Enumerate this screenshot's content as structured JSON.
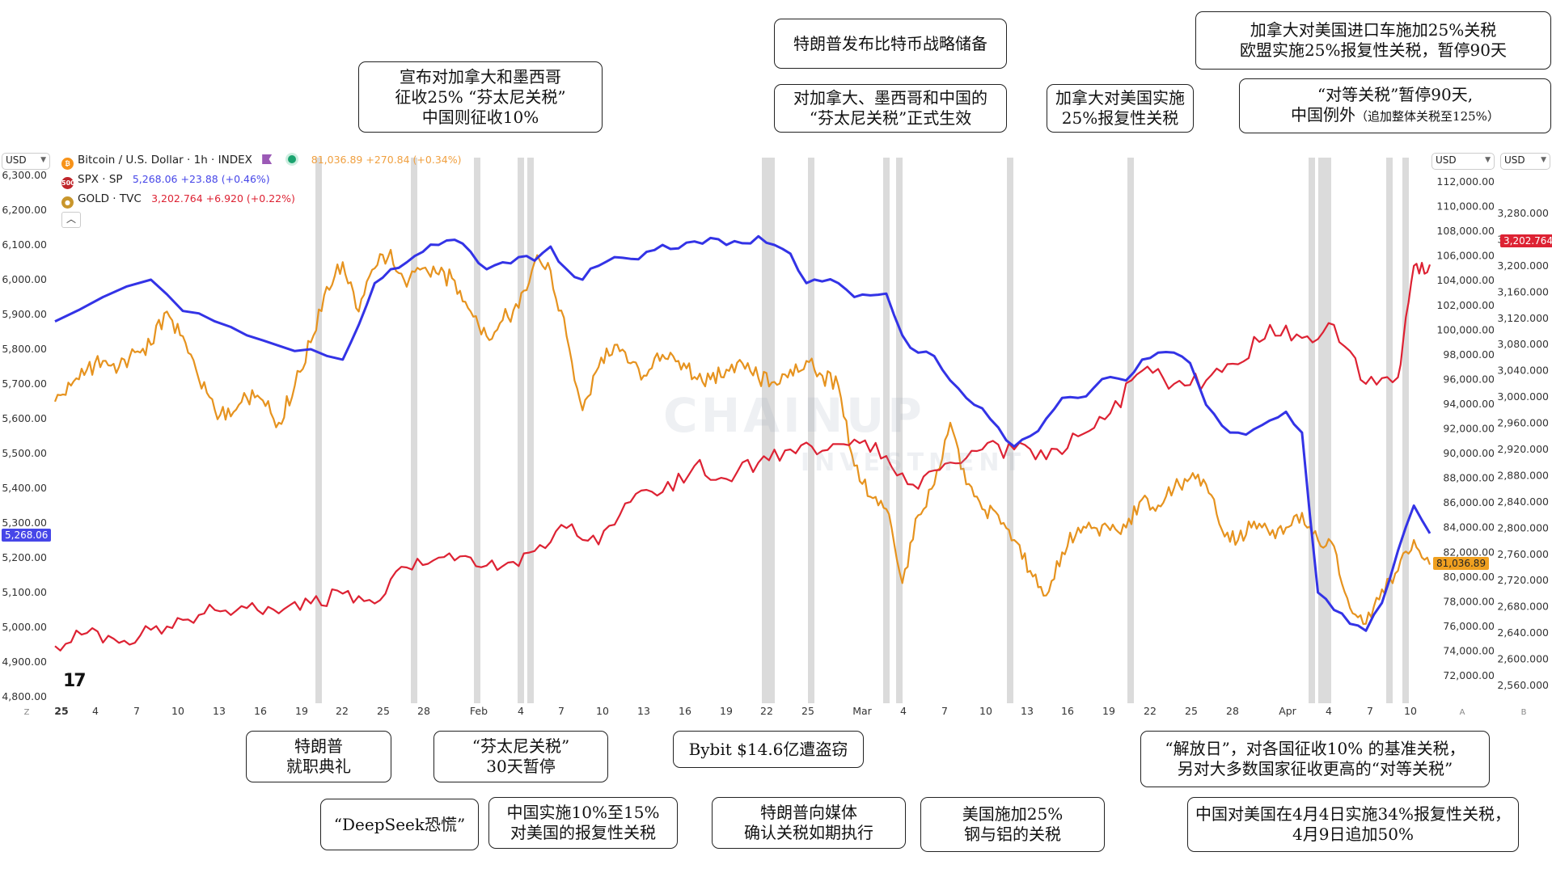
{
  "header": {
    "btc_title": "Bitcoin / U.S. Dollar · 1h · INDEX",
    "btc_quote": "81,036.89  +270.84 (+0.34%)",
    "spx_title": "SPX · SP",
    "spx_quote": "5,268.06  +23.88 (+0.46%)",
    "gold_title": "GOLD · TVC",
    "gold_quote": "3,202.764  +6.920 (+0.22%)",
    "btc_icon": "bitcoin-icon",
    "spx_icon_text": "500",
    "collapse_icon": "chevron-up-icon",
    "flag_icon": "flag-icon"
  },
  "currency_buttons": {
    "left": "USD",
    "right_btc": "USD",
    "right_gold": "USD"
  },
  "watermark": {
    "line1": "CHAINUP",
    "line2": "INVESTMENT"
  },
  "price_tags": {
    "spx": "5,268.06",
    "btc": "81,036.89",
    "gold": "3,202.764"
  },
  "axis_letters": {
    "left": "Z",
    "right1": "A",
    "right2": "B"
  },
  "annotations": [
    {
      "id": "tariff-announce",
      "lines": [
        "宣布对加拿大和墨西哥",
        "征收25% “芬太尼关税”",
        "中国则征收10%"
      ]
    },
    {
      "id": "btc-reserve",
      "lines": [
        "特朗普发布比特币战略储备"
      ]
    },
    {
      "id": "fentanyl-effective",
      "lines": [
        "对加拿大、墨西哥和中国的",
        "“芬太尼关税”正式生效"
      ]
    },
    {
      "id": "canada-retaliate",
      "lines": [
        "加拿大对美国实施",
        "25%报复性关税"
      ]
    },
    {
      "id": "auto-tariff",
      "lines": [
        "加拿大对美国进口车施加25%关税",
        "欧盟实施25%报复性关税，暂停90天"
      ]
    },
    {
      "id": "reciprocal-pause",
      "lines": [
        "“对等关税”暂停90天,",
        "中国例外"
      ],
      "small": "（追加整体关税至125%）"
    },
    {
      "id": "inauguration",
      "lines": [
        "特朗普",
        "就职典礼"
      ]
    },
    {
      "id": "deepseek",
      "lines": [
        "“DeepSeek恐慌”"
      ]
    },
    {
      "id": "fentanyl-pause",
      "lines": [
        "“芬太尼关税”",
        "30天暂停"
      ]
    },
    {
      "id": "china-retaliate",
      "lines": [
        "中国实施10%至15%",
        "对美国的报复性关税"
      ]
    },
    {
      "id": "bybit",
      "lines": [
        "Bybit $14.6亿遭盗窃"
      ]
    },
    {
      "id": "trump-media",
      "lines": [
        "特朗普向媒体",
        "确认关税如期执行"
      ]
    },
    {
      "id": "steel-tariff",
      "lines": [
        "美国施加25%",
        "钢与铝的关税"
      ]
    },
    {
      "id": "liberation-day",
      "lines": [
        "“解放日”，对各国征收10% 的基准关税，",
        "另对大多数国家征收更高的“对等关税”"
      ]
    },
    {
      "id": "china-34",
      "lines": [
        "中国对美国在4月4日实施34%报复性关税，",
        "4月9日追加50%"
      ]
    }
  ],
  "chart_data": {
    "type": "line",
    "x_axis_ticks": [
      "25",
      "4",
      "7",
      "10",
      "13",
      "16",
      "19",
      "22",
      "25",
      "28",
      "Feb",
      "4",
      "7",
      "10",
      "13",
      "16",
      "19",
      "22",
      "25",
      "Mar",
      "4",
      "7",
      "10",
      "13",
      "16",
      "19",
      "22",
      "25",
      "28",
      "Apr",
      "4",
      "7",
      "10"
    ],
    "event_markers": [
      "Jan 20",
      "Jan 27",
      "Feb 3",
      "Feb 4",
      "Feb 5",
      "Feb 20",
      "Feb 21",
      "Feb 25",
      "Mar 3",
      "Mar 4",
      "Mar 12",
      "Mar 20",
      "Apr 2",
      "Apr 3",
      "Apr 4",
      "Apr 9",
      "Apr 10"
    ],
    "scales": [
      {
        "name": "SPX",
        "side": "left",
        "ticks": [
          "6,300.00",
          "6,200.00",
          "6,100.00",
          "6,000.00",
          "5,900.00",
          "5,800.00",
          "5,700.00",
          "5,600.00",
          "5,500.00",
          "5,400.00",
          "5,300.00",
          "5,200.00",
          "5,100.00",
          "5,000.00",
          "4,900.00",
          "4,800.00"
        ],
        "range": [
          4800,
          6300
        ]
      },
      {
        "name": "BTC",
        "side": "right",
        "ticks": [
          "112,000.00",
          "110,000.00",
          "108,000.00",
          "106,000.00",
          "104,000.00",
          "102,000.00",
          "100,000.00",
          "98,000.00",
          "96,000.00",
          "94,000.00",
          "92,000.00",
          "90,000.00",
          "88,000.00",
          "86,000.00",
          "84,000.00",
          "82,000.00",
          "80,000.00",
          "78,000.00",
          "76,000.00",
          "74,000.00",
          "72,000.00"
        ],
        "range": [
          72000,
          112000
        ]
      },
      {
        "name": "GOLD",
        "side": "right",
        "ticks": [
          "3,280.000",
          "3,240.000",
          "3,200.000",
          "3,160.000",
          "3,120.000",
          "3,080.000",
          "3,040.000",
          "3,000.000",
          "2,960.000",
          "2,920.000",
          "2,880.000",
          "2,840.000",
          "2,800.000",
          "2,760.000",
          "2,720.000",
          "2,680.000",
          "2,640.000",
          "2,600.000",
          "2,560.000"
        ],
        "range": [
          2560,
          3280
        ]
      }
    ],
    "series": [
      {
        "name": "SPX",
        "color": "#3333e6",
        "scale": "SPX",
        "points": [
          [
            0,
            5880
          ],
          [
            3,
            5950
          ],
          [
            6,
            6000
          ],
          [
            8,
            5910
          ],
          [
            10,
            5880
          ],
          [
            12,
            5840
          ],
          [
            14,
            5810
          ],
          [
            16,
            5800
          ],
          [
            18,
            5770
          ],
          [
            19,
            5870
          ],
          [
            20,
            5990
          ],
          [
            21,
            6030
          ],
          [
            22,
            6050
          ],
          [
            23,
            6080
          ],
          [
            24,
            6100
          ],
          [
            25,
            6115
          ],
          [
            26,
            6080
          ],
          [
            27,
            6030
          ],
          [
            28,
            6050
          ],
          [
            29,
            6065
          ],
          [
            30,
            6055
          ],
          [
            31,
            6095
          ],
          [
            32,
            6030
          ],
          [
            33,
            6000
          ],
          [
            34,
            6040
          ],
          [
            35,
            6065
          ],
          [
            36,
            6060
          ],
          [
            37,
            6080
          ],
          [
            38,
            6100
          ],
          [
            39,
            6090
          ],
          [
            40,
            6110
          ],
          [
            41,
            6120
          ],
          [
            42,
            6100
          ],
          [
            43,
            6105
          ],
          [
            44,
            6125
          ],
          [
            45,
            6100
          ],
          [
            46,
            6075
          ],
          [
            47,
            5990
          ],
          [
            48,
            5995
          ],
          [
            49,
            5990
          ],
          [
            50,
            5950
          ],
          [
            51,
            5955
          ],
          [
            52,
            5960
          ],
          [
            53,
            5840
          ],
          [
            54,
            5790
          ],
          [
            55,
            5780
          ],
          [
            56,
            5710
          ],
          [
            57,
            5660
          ],
          [
            58,
            5630
          ],
          [
            59,
            5575
          ],
          [
            60,
            5520
          ],
          [
            61,
            5550
          ],
          [
            62,
            5600
          ],
          [
            63,
            5660
          ],
          [
            64,
            5660
          ],
          [
            65,
            5690
          ],
          [
            66,
            5720
          ],
          [
            67,
            5710
          ],
          [
            68,
            5770
          ],
          [
            69,
            5790
          ],
          [
            70,
            5790
          ],
          [
            71,
            5760
          ],
          [
            72,
            5640
          ],
          [
            73,
            5580
          ],
          [
            74,
            5560
          ],
          [
            75,
            5570
          ],
          [
            76,
            5595
          ],
          [
            77,
            5620
          ],
          [
            78,
            5560
          ],
          [
            79,
            5100
          ],
          [
            80,
            5050
          ],
          [
            81,
            5010
          ],
          [
            82,
            4990
          ],
          [
            83,
            5070
          ],
          [
            84,
            5220
          ],
          [
            85,
            5350
          ],
          [
            86,
            5270
          ]
        ]
      },
      {
        "name": "BTC",
        "color": "#e6931f",
        "scale": "BTC",
        "points": [
          [
            0,
            94200
          ],
          [
            1,
            95500
          ],
          [
            2,
            96800
          ],
          [
            3,
            97500
          ],
          [
            4,
            97000
          ],
          [
            5,
            98200
          ],
          [
            6,
            98800
          ],
          [
            7,
            101500
          ],
          [
            8,
            99500
          ],
          [
            9,
            96000
          ],
          [
            10,
            93500
          ],
          [
            11,
            93000
          ],
          [
            12,
            94500
          ],
          [
            13,
            94300
          ],
          [
            14,
            92500
          ],
          [
            15,
            95500
          ],
          [
            16,
            99000
          ],
          [
            17,
            103500
          ],
          [
            18,
            105500
          ],
          [
            19,
            101500
          ],
          [
            20,
            105000
          ],
          [
            21,
            106500
          ],
          [
            22,
            103500
          ],
          [
            23,
            105000
          ],
          [
            24,
            104500
          ],
          [
            25,
            104000
          ],
          [
            26,
            101500
          ],
          [
            27,
            99500
          ],
          [
            28,
            100800
          ],
          [
            29,
            101800
          ],
          [
            30,
            105500
          ],
          [
            31,
            104800
          ],
          [
            32,
            99500
          ],
          [
            33,
            93500
          ],
          [
            34,
            97000
          ],
          [
            35,
            98800
          ],
          [
            36,
            97300
          ],
          [
            37,
            96300
          ],
          [
            38,
            98000
          ],
          [
            39,
            97500
          ],
          [
            40,
            96200
          ],
          [
            41,
            96000
          ],
          [
            42,
            96800
          ],
          [
            43,
            97300
          ],
          [
            44,
            96100
          ],
          [
            45,
            95800
          ],
          [
            46,
            96800
          ],
          [
            47,
            97500
          ],
          [
            48,
            96300
          ],
          [
            49,
            95500
          ],
          [
            50,
            89000
          ],
          [
            51,
            86500
          ],
          [
            52,
            85500
          ],
          [
            53,
            79500
          ],
          [
            54,
            85000
          ],
          [
            55,
            87500
          ],
          [
            56,
            92500
          ],
          [
            57,
            87500
          ],
          [
            58,
            85500
          ],
          [
            59,
            85000
          ],
          [
            60,
            83000
          ],
          [
            61,
            80500
          ],
          [
            62,
            78500
          ],
          [
            63,
            82000
          ],
          [
            64,
            84000
          ],
          [
            65,
            84000
          ],
          [
            66,
            83800
          ],
          [
            67,
            84000
          ],
          [
            68,
            86300
          ],
          [
            69,
            85800
          ],
          [
            70,
            87200
          ],
          [
            71,
            88000
          ],
          [
            72,
            87500
          ],
          [
            73,
            83800
          ],
          [
            74,
            83000
          ],
          [
            75,
            84500
          ],
          [
            76,
            83400
          ],
          [
            77,
            84000
          ],
          [
            78,
            85200
          ],
          [
            79,
            83000
          ],
          [
            80,
            82500
          ],
          [
            81,
            77500
          ],
          [
            82,
            76200
          ],
          [
            83,
            79000
          ],
          [
            84,
            80500
          ],
          [
            85,
            83000
          ],
          [
            86,
            81000
          ]
        ]
      },
      {
        "name": "GOLD",
        "color": "#dd2233",
        "scale": "GOLD",
        "points": [
          [
            0,
            2620
          ],
          [
            2,
            2640
          ],
          [
            4,
            2625
          ],
          [
            6,
            2645
          ],
          [
            8,
            2660
          ],
          [
            10,
            2675
          ],
          [
            12,
            2678
          ],
          [
            14,
            2670
          ],
          [
            16,
            2685
          ],
          [
            18,
            2700
          ],
          [
            20,
            2685
          ],
          [
            22,
            2740
          ],
          [
            24,
            2755
          ],
          [
            26,
            2755
          ],
          [
            28,
            2742
          ],
          [
            30,
            2765
          ],
          [
            32,
            2800
          ],
          [
            34,
            2775
          ],
          [
            36,
            2840
          ],
          [
            38,
            2855
          ],
          [
            40,
            2895
          ],
          [
            42,
            2875
          ],
          [
            44,
            2900
          ],
          [
            46,
            2920
          ],
          [
            48,
            2918
          ],
          [
            50,
            2935
          ],
          [
            52,
            2910
          ],
          [
            54,
            2860
          ],
          [
            56,
            2900
          ],
          [
            58,
            2920
          ],
          [
            60,
            2920
          ],
          [
            62,
            2905
          ],
          [
            64,
            2940
          ],
          [
            66,
            2975
          ],
          [
            68,
            3040
          ],
          [
            70,
            3020
          ],
          [
            72,
            3025
          ],
          [
            74,
            3050
          ],
          [
            76,
            3110
          ],
          [
            78,
            3090
          ],
          [
            80,
            3110
          ],
          [
            82,
            3020
          ],
          [
            84,
            3030
          ],
          [
            85,
            3200
          ],
          [
            86,
            3202
          ]
        ]
      }
    ],
    "title": "Bitcoin / U.S. Dollar · 1h · INDEX",
    "grid": false,
    "legend": "top-left"
  }
}
